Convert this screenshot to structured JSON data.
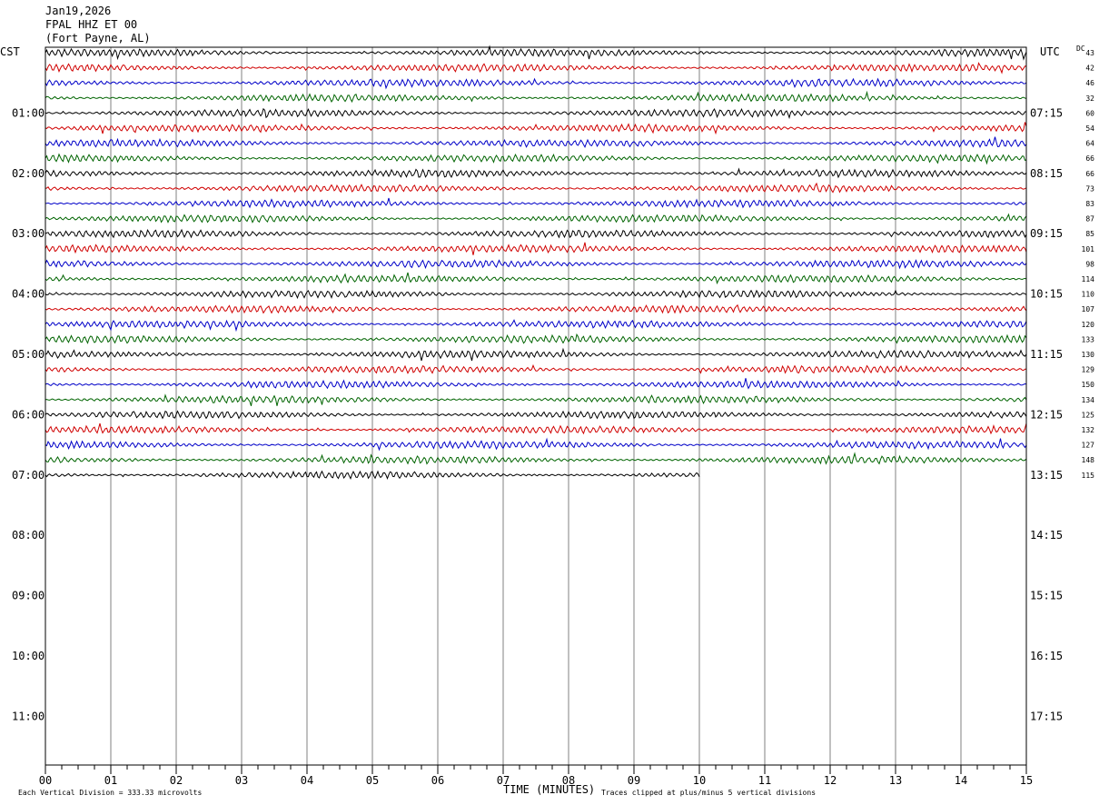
{
  "header": {
    "date": "Jan19,2026",
    "station": "FPAL HHZ ET 00",
    "location": "(Fort Payne, AL)"
  },
  "axes": {
    "left_label": "CST",
    "right_label": "UTC",
    "dc_label": "DC",
    "xlabel": "TIME (MINUTES)"
  },
  "footer": {
    "scale_note": "Each Vertical Division =  333.33 microvolts",
    "clip_note": "Traces clipped at plus/minus 5 vertical divisions"
  },
  "colors": {
    "traces": [
      "#000000",
      "#d00000",
      "#0000c8",
      "#006400"
    ],
    "grid": "#808080"
  },
  "chart_data": {
    "type": "line",
    "title": "FPAL HHZ ET 00",
    "xlabel": "TIME (MINUTES)",
    "xlim": [
      0,
      15
    ],
    "x_ticks": [
      "00",
      "01",
      "02",
      "03",
      "04",
      "05",
      "06",
      "07",
      "08",
      "09",
      "10",
      "11",
      "12",
      "13",
      "14",
      "15"
    ],
    "hours_cst": [
      "01:00",
      "02:00",
      "03:00",
      "04:00",
      "05:00",
      "06:00",
      "07:00",
      "08:00",
      "09:00",
      "10:00",
      "11:00"
    ],
    "hours_utc": [
      "07:15",
      "08:15",
      "09:15",
      "10:15",
      "11:15",
      "12:15",
      "13:15",
      "14:15",
      "15:15",
      "16:15",
      "17:15"
    ],
    "rows_total": 48,
    "dc_offsets": [
      43,
      42,
      46,
      32,
      60,
      54,
      64,
      66,
      66,
      73,
      83,
      87,
      85,
      101,
      98,
      114,
      110,
      107,
      120,
      133,
      130,
      129,
      150,
      134,
      125,
      132,
      127,
      148,
      115
    ],
    "last_row_end_minute": 10
  }
}
